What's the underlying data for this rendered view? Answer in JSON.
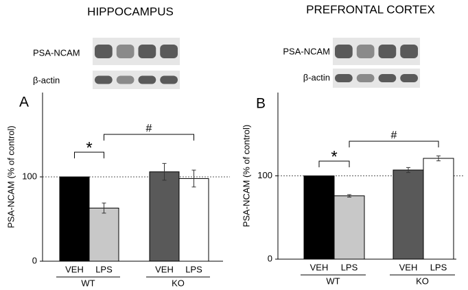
{
  "chart_data": [
    {
      "type": "bar",
      "title": "HIPPOCAMPUS",
      "panel_label": "A",
      "y_label": "PSA-NCAM  (% of control)",
      "blot_labels": [
        "PSA-NCAM",
        "β-actin"
      ],
      "categories": [
        "VEH",
        "LPS",
        "VEH",
        "LPS"
      ],
      "groups": [
        "WT",
        "KO"
      ],
      "values": [
        100,
        63,
        106,
        98
      ],
      "errors": [
        0,
        6,
        10,
        10
      ],
      "colors": [
        "#000000",
        "#c8c8c8",
        "#595959",
        "#ffffff"
      ],
      "ylim": [
        0,
        200
      ],
      "yticks": [
        0,
        100
      ],
      "reference_line": 100,
      "annotations": [
        "*",
        "#"
      ]
    },
    {
      "type": "bar",
      "title": "PREFRONTAL CORTEX",
      "panel_label": "B",
      "y_label": "PSA-NCAM  (% of control)",
      "blot_labels": [
        "PSA-NCAM",
        "β-actin"
      ],
      "categories": [
        "VEH",
        "LPS",
        "VEH",
        "LPS"
      ],
      "groups": [
        "WT",
        "KO"
      ],
      "values": [
        100,
        76,
        107,
        121
      ],
      "errors": [
        0,
        1.5,
        3,
        3
      ],
      "colors": [
        "#000000",
        "#c8c8c8",
        "#595959",
        "#ffffff"
      ],
      "ylim": [
        0,
        200
      ],
      "yticks": [
        0,
        100
      ],
      "reference_line": 100,
      "annotations": [
        "*",
        "#"
      ]
    }
  ]
}
